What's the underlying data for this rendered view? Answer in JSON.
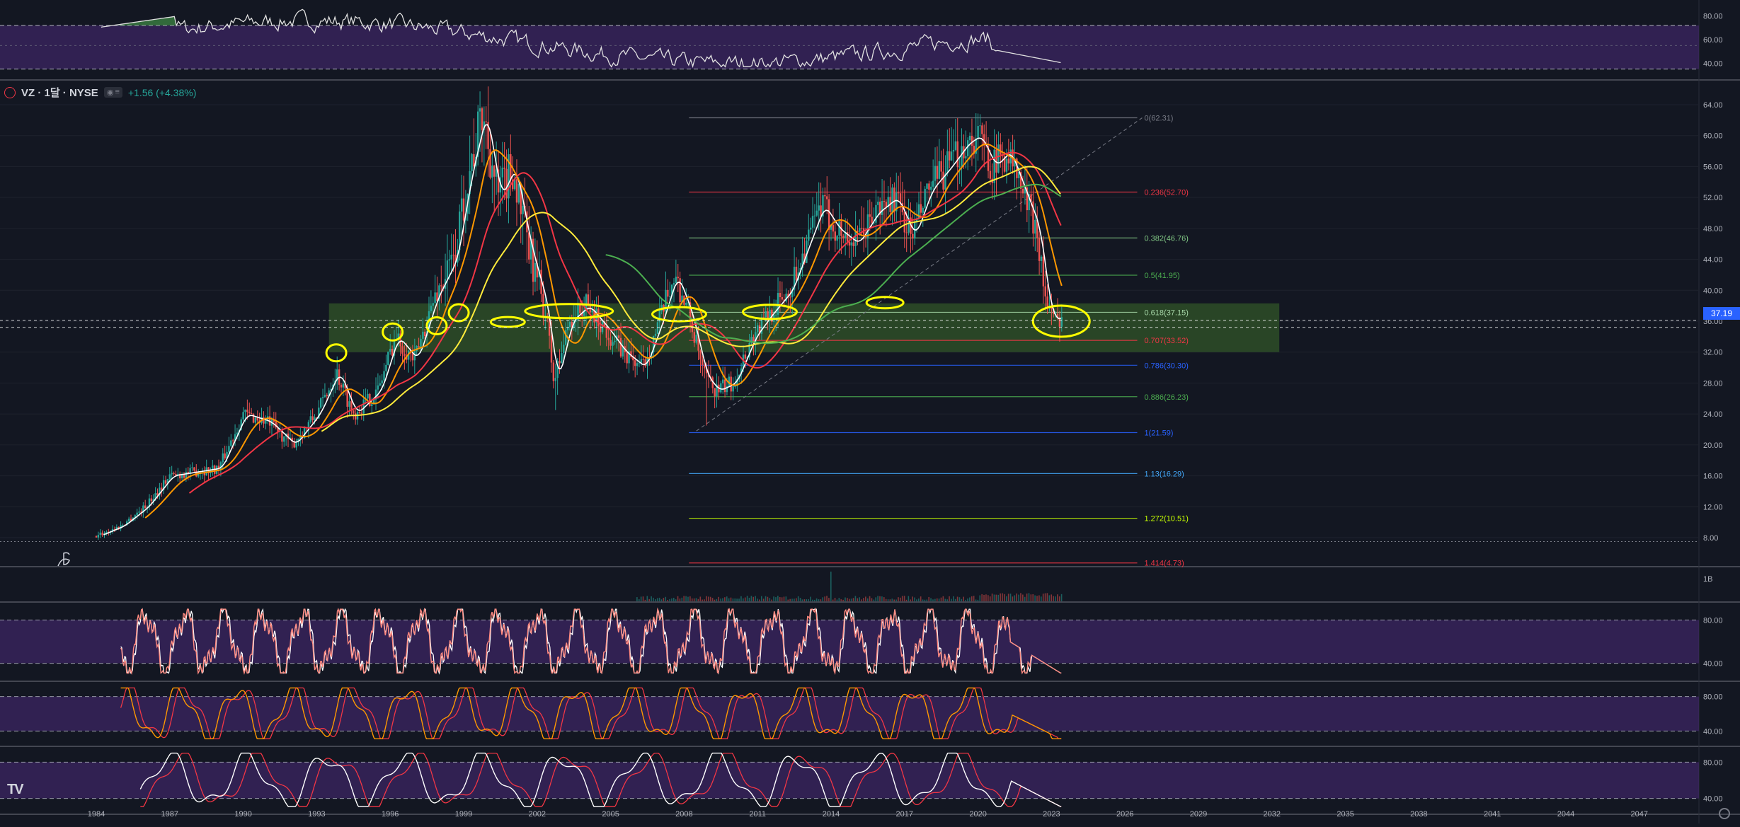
{
  "header": {
    "symbol": "VZ · 1달 · NYSE",
    "change": "+1.56 (+4.38%)",
    "last_price": "37.19"
  },
  "colors": {
    "background": "#131722",
    "candle_up": "#26a69a",
    "candle_down": "#ef5350",
    "fib_zone": "#3d6b2a",
    "osc_band": "#4a2a7a",
    "highlight": "#ffff00"
  },
  "chart_data": {
    "type": "candlestick",
    "symbol": "VZ",
    "interval": "1달",
    "exchange": "NYSE",
    "x_ticks": [
      "1984",
      "1987",
      "1990",
      "1993",
      "1996",
      "1999",
      "2002",
      "2005",
      "2008",
      "2011",
      "2014",
      "2017",
      "2020",
      "2023",
      "2026",
      "2029",
      "2032",
      "2035",
      "2038",
      "2041",
      "2044",
      "2047"
    ],
    "price_axis": [
      "64.00",
      "60.00",
      "56.00",
      "52.00",
      "48.00",
      "44.00",
      "40.00",
      "36.00",
      "32.00",
      "28.00",
      "24.00",
      "20.00",
      "16.00",
      "12.00",
      "8.00"
    ],
    "ylim": [
      4,
      66
    ],
    "price_path": [
      [
        1984.0,
        8.2
      ],
      [
        1985.0,
        9.5
      ],
      [
        1986.0,
        12
      ],
      [
        1987.0,
        16
      ],
      [
        1988.0,
        16.5
      ],
      [
        1989.0,
        17
      ],
      [
        1990.0,
        24
      ],
      [
        1991.0,
        23
      ],
      [
        1992.0,
        20
      ],
      [
        1993.0,
        24
      ],
      [
        1993.8,
        29.5
      ],
      [
        1994.5,
        24
      ],
      [
        1995.5,
        27
      ],
      [
        1996.2,
        34
      ],
      [
        1997.0,
        31
      ],
      [
        1997.8,
        39
      ],
      [
        1998.6,
        44
      ],
      [
        1999.2,
        55
      ],
      [
        1999.8,
        63
      ],
      [
        2000.4,
        52
      ],
      [
        2001.0,
        56
      ],
      [
        2001.6,
        46
      ],
      [
        2002.3,
        38
      ],
      [
        2002.7,
        28
      ],
      [
        2003.3,
        36
      ],
      [
        2004.0,
        38
      ],
      [
        2004.8,
        35
      ],
      [
        2005.5,
        32
      ],
      [
        2006.3,
        30
      ],
      [
        2007.0,
        36
      ],
      [
        2007.6,
        42
      ],
      [
        2008.2,
        37
      ],
      [
        2008.8,
        29
      ],
      [
        2009.3,
        27
      ],
      [
        2010.0,
        28
      ],
      [
        2010.8,
        34
      ],
      [
        2011.5,
        37
      ],
      [
        2012.3,
        40
      ],
      [
        2013.0,
        46
      ],
      [
        2013.6,
        51
      ],
      [
        2014.2,
        48
      ],
      [
        2015.0,
        46
      ],
      [
        2015.8,
        50
      ],
      [
        2016.6,
        52
      ],
      [
        2017.3,
        47
      ],
      [
        2018.0,
        53
      ],
      [
        2018.8,
        56
      ],
      [
        2019.5,
        59
      ],
      [
        2020.0,
        60
      ],
      [
        2020.6,
        56
      ],
      [
        2021.2,
        58
      ],
      [
        2021.8,
        53
      ],
      [
        2022.4,
        48
      ],
      [
        2022.8,
        38
      ],
      [
        2023.2,
        35.6
      ],
      [
        2023.4,
        37.2
      ]
    ],
    "moving_averages": [
      {
        "color": "#ffffff",
        "lag": 0.4
      },
      {
        "color": "#ff9800",
        "lag": 1.2
      },
      {
        "color": "#f23645",
        "lag": 2.6
      },
      {
        "color": "#ffeb3b",
        "lag": 4.5
      },
      {
        "color": "#4caf50",
        "lag": 7.0
      }
    ],
    "fib_levels": [
      {
        "label": "0(62.31)",
        "price": 62.31,
        "color": "#787b86"
      },
      {
        "label": "0.236(52.70)",
        "price": 52.7,
        "color": "#f23645"
      },
      {
        "label": "0.382(46.76)",
        "price": 46.76,
        "color": "#81c784"
      },
      {
        "label": "0.5(41.95)",
        "price": 41.95,
        "color": "#4caf50"
      },
      {
        "label": "0.618(37.15)",
        "price": 37.15,
        "color": "#a5d6a7"
      },
      {
        "label": "0.707(33.52)",
        "price": 33.52,
        "color": "#f23645"
      },
      {
        "label": "0.786(30.30)",
        "price": 30.3,
        "color": "#2962ff"
      },
      {
        "label": "0.886(26.23)",
        "price": 26.23,
        "color": "#4caf50"
      },
      {
        "label": "1(21.59)",
        "price": 21.59,
        "color": "#2962ff"
      },
      {
        "label": "1.13(16.29)",
        "price": 16.29,
        "color": "#42a5f5"
      },
      {
        "label": "1.272(10.51)",
        "price": 10.51,
        "color": "#c6ff00"
      },
      {
        "label": "1.414(4.73)",
        "price": 4.73,
        "color": "#f23645"
      }
    ],
    "fib_range": {
      "x_start": 2008.2,
      "x_end": 2026.5
    },
    "support_zone": {
      "price_low": 32.0,
      "price_high": 38.3,
      "x_start": 1993.5,
      "x_end": 2032.3
    },
    "highlight_circles": [
      [
        1993.8,
        31.9
      ],
      [
        1996.1,
        34.6
      ],
      [
        1997.9,
        35.4
      ],
      [
        1998.8,
        37.1
      ],
      [
        2000.8,
        35.9
      ],
      [
        2003.3,
        37.3
      ],
      [
        2007.8,
        36.9
      ],
      [
        2011.5,
        37.2
      ],
      [
        2016.2,
        38.4
      ],
      [
        2023.4,
        36.0
      ]
    ],
    "trendline": {
      "from": [
        2008.5,
        21.8
      ],
      "to": [
        2026.7,
        62.3
      ]
    },
    "volume_label": "1B",
    "top_panel": {
      "ticks": [
        "80.00",
        "60.00",
        "40.00"
      ]
    },
    "oscillator_panels": [
      {
        "ticks": [
          "80.00",
          "40.00"
        ]
      },
      {
        "ticks": [
          "80.00",
          "40.00"
        ]
      },
      {
        "ticks": [
          "80.00",
          "40.00"
        ]
      }
    ]
  }
}
